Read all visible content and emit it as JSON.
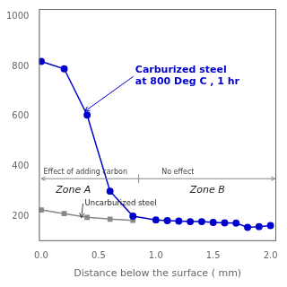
{
  "chart_data": {
    "type": "line",
    "x_label": "Distance below the surface ( mm)",
    "series": [
      {
        "color": "#0000cc",
        "marker": "circle",
        "x": [
          0.0,
          0.2,
          0.4,
          0.6,
          0.8,
          1.0,
          1.1,
          1.2,
          1.3,
          1.4,
          1.5,
          1.6,
          1.7,
          1.8,
          1.9,
          2.0
        ],
        "values": [
          820,
          790,
          605,
          300,
          200,
          185,
          182,
          180,
          178,
          178,
          175,
          173,
          172,
          155,
          158,
          162
        ]
      },
      {
        "color": "#888888",
        "marker": "square",
        "x": [
          0.0,
          0.2,
          0.4,
          0.6,
          0.8
        ],
        "values": [
          225,
          210,
          195,
          188,
          183
        ]
      }
    ],
    "xlim": [
      -0.02,
      2.05
    ],
    "xticks": [
      {
        "value": 0,
        "label": "0.0"
      },
      {
        "value": 0.5,
        "label": "0.5"
      },
      {
        "value": 1,
        "label": "1.0"
      },
      {
        "value": 1.5,
        "label": "1.5"
      },
      {
        "value": 2,
        "label": "2.0"
      }
    ],
    "ylim": [
      100,
      1030
    ],
    "yticks": [
      200,
      400,
      600,
      800,
      1000
    ],
    "grid": false,
    "annotations": [
      {
        "text": "Carburized steel\nat 800 Deg C , 1 hr",
        "x": 0.82,
        "y": 760,
        "arrow_to": [
          0.38,
          620
        ],
        "color": "#0000cc"
      },
      {
        "text": "Uncarburized steel",
        "x": 0.38,
        "y": 250,
        "arrow_to": [
          0.35,
          193
        ]
      }
    ],
    "zone_line": {
      "y": 350,
      "x": 0.85,
      "from": 0.0,
      "to": 2.04,
      "color": "#888888",
      "labels": [
        {
          "text": "Effect of adding carbon",
          "x": 0.02,
          "y": 362
        },
        {
          "text": "No effect",
          "x": 1.05,
          "y": 362
        }
      ],
      "zones": [
        {
          "text": "Zone A",
          "x": 0.28,
          "y": 325
        },
        {
          "text": "Zone B",
          "x": 1.45,
          "y": 325
        }
      ]
    }
  }
}
